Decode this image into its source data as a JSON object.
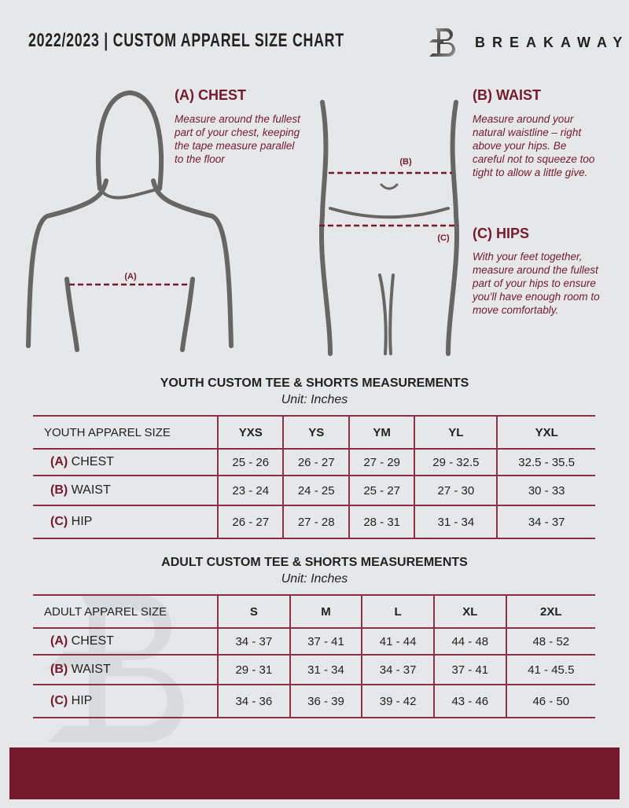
{
  "header": {
    "title": "2022/2023  |  CUSTOM APPAREL SIZE CHART",
    "brand": "BREAKAWAY"
  },
  "measures": {
    "chest": {
      "label": "(A) CHEST",
      "marker": "(A)",
      "desc": "Measure around the fullest part of your chest, keeping the tape measure parallel to the floor"
    },
    "waist": {
      "label": "(B) WAIST",
      "marker": "(B)",
      "desc": "Measure around your natural waistline – right above your hips. Be careful not to squeeze too tight to allow a little give."
    },
    "hips": {
      "label": "(C) HIPS",
      "marker": "(C)",
      "desc": "With your feet together, measure around the fullest part of your hips to ensure you'll have enough room to move comfortably."
    }
  },
  "youth": {
    "title": "YOUTH CUSTOM TEE & SHORTS MEASUREMENTS",
    "unit": "Unit: Inches",
    "header": "YOUTH APPAREL SIZE",
    "sizes": [
      "YXS",
      "YS",
      "YM",
      "YL",
      "YXL"
    ],
    "rows": [
      {
        "code": "(A)",
        "name": "CHEST",
        "values": [
          "25 - 26",
          "26 - 27",
          "27 - 29",
          "29 - 32.5",
          "32.5 - 35.5"
        ]
      },
      {
        "code": "(B)",
        "name": "WAIST",
        "values": [
          "23 - 24",
          "24 - 25",
          "25 - 27",
          "27 - 30",
          "30 - 33"
        ]
      },
      {
        "code": "(C)",
        "name": "HIP",
        "values": [
          "26 - 27",
          "27 - 28",
          "28 - 31",
          "31 - 34",
          "34 - 37"
        ]
      }
    ]
  },
  "adult": {
    "title": "ADULT CUSTOM TEE & SHORTS MEASUREMENTS",
    "unit": "Unit: Inches",
    "header": "ADULT APPAREL SIZE",
    "sizes": [
      "S",
      "M",
      "L",
      "XL",
      "2XL"
    ],
    "rows": [
      {
        "code": "(A)",
        "name": "CHEST",
        "values": [
          "34 - 37",
          "37 - 41",
          "41 - 44",
          "44 - 48",
          "48 - 52"
        ]
      },
      {
        "code": "(B)",
        "name": "WAIST",
        "values": [
          "29 - 31",
          "31 - 34",
          "34 - 37",
          "37 - 41",
          "41 - 45.5"
        ]
      },
      {
        "code": "(C)",
        "name": "HIP",
        "values": [
          "34 - 36",
          "36 - 39",
          "39 - 42",
          "43 - 46",
          "46 - 50"
        ]
      }
    ]
  },
  "colors": {
    "accent": "#741a2e",
    "background": "#e6e7e9"
  }
}
